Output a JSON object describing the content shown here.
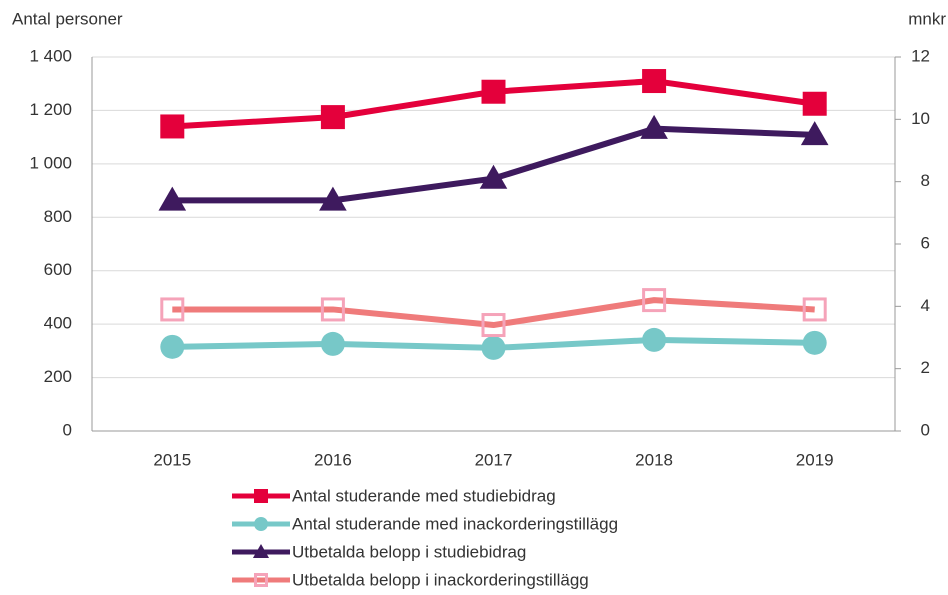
{
  "chart_data": {
    "type": "line",
    "y_label": "Antal personer",
    "y2_label": "mnkr",
    "categories": [
      "2015",
      "2016",
      "2017",
      "2018",
      "2019"
    ],
    "ylim": [
      0,
      1400
    ],
    "yticks": [
      0,
      200,
      400,
      600,
      800,
      {
        "value": 1000,
        "label": "1 000"
      },
      {
        "value": 1200,
        "label": "1 200"
      },
      {
        "value": 1400,
        "label": "1 400"
      }
    ],
    "y2lim": [
      0,
      12
    ],
    "y2ticks": [
      0,
      2,
      4,
      6,
      8,
      10,
      12
    ],
    "grid": true,
    "series": [
      {
        "name": "Antal studerande med studiebidrag",
        "color": "#e4003b",
        "marker": "square",
        "values": [
          1140,
          1175,
          1270,
          1310,
          1225
        ]
      },
      {
        "name": "Antal studerande med inackorderingstillägg",
        "color": "#77c8c8",
        "marker": "circle",
        "values": [
          315,
          326,
          311,
          341,
          330
        ]
      },
      {
        "name": "Utbetalda belopp i studiebidrag",
        "color": "#3e1a5e",
        "marker": "triangle",
        "axis": "y2",
        "values": [
          7.4,
          7.4,
          8.1,
          9.7,
          9.5
        ]
      },
      {
        "name": "Utbetalda belopp i inackorderingstillägg",
        "color": "#ef7b7b",
        "marker": "square-open",
        "marker_color": "#f5a3b9",
        "axis": "y2",
        "values": [
          3.9,
          3.9,
          3.4,
          4.2,
          3.9
        ]
      }
    ]
  }
}
